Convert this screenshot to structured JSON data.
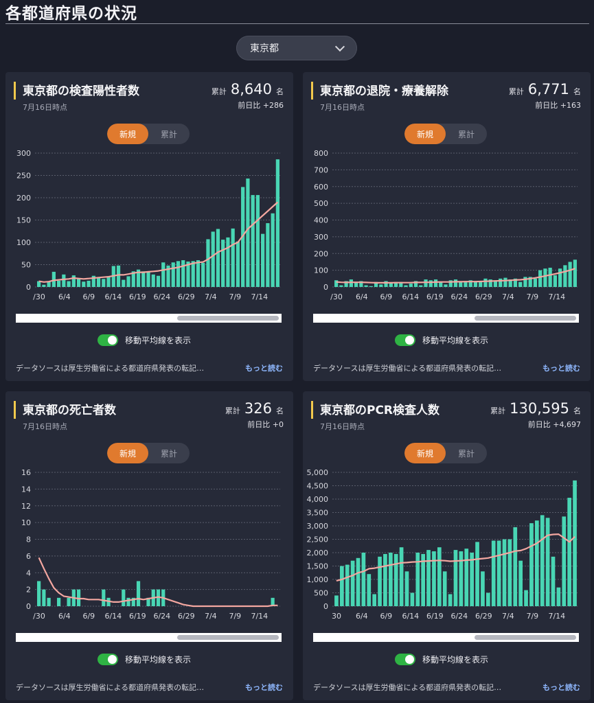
{
  "page_title": "各都道府県の状況",
  "region_select": {
    "value": "東京都"
  },
  "common": {
    "toggle_new": "新規",
    "toggle_cumulative": "累計",
    "ma_label": "移動平均線を表示",
    "source_text": "データソースは厚生労働省による都道府県発表の転記…",
    "more_label": "もっと読む",
    "total_label": "累計",
    "date_label": "7月16日時点"
  },
  "colors": {
    "bar": "#49d6b4",
    "ma_line": "#f4a7a0",
    "accent": "#f2c94c",
    "toggle_active": "#e07a2e",
    "switch_on": "#2fb344"
  },
  "cards": [
    {
      "title": "東京都の検査陽性者数",
      "total": "8,640",
      "unit": "名",
      "diff": "前日比 +286"
    },
    {
      "title": "東京都の退院・療養解除",
      "total": "6,771",
      "unit": "名",
      "diff": "前日比 +163"
    },
    {
      "title": "東京都の死亡者数",
      "total": "326",
      "unit": "名",
      "diff": "前日比 +0"
    },
    {
      "title": "東京都のPCR検査人数",
      "total": "130,595",
      "unit": "名",
      "diff": "前日比 +4,697"
    }
  ],
  "chart_data": [
    {
      "type": "bar",
      "title": "東京都の検査陽性者数",
      "x_tick_labels": [
        "/30",
        "6/4",
        "6/9",
        "6/14",
        "6/19",
        "6/24",
        "6/29",
        "7/4",
        "7/9",
        "7/14"
      ],
      "ylim": [
        0,
        300
      ],
      "y_ticks": [
        "0",
        "50",
        "100",
        "150",
        "200",
        "250",
        "300"
      ],
      "grid": true,
      "values": [
        13,
        5,
        12,
        34,
        14,
        28,
        13,
        26,
        20,
        12,
        14,
        25,
        22,
        18,
        24,
        47,
        48,
        16,
        24,
        35,
        39,
        35,
        33,
        28,
        25,
        55,
        48,
        55,
        58,
        60,
        57,
        58,
        60,
        54,
        107,
        124,
        130,
        106,
        111,
        131,
        102,
        224,
        243,
        206,
        206,
        119,
        143,
        165,
        286
      ],
      "moving_average": [
        13,
        11,
        12,
        15,
        16,
        17,
        18,
        20,
        19,
        18,
        19,
        20,
        21,
        22,
        23,
        25,
        27,
        27,
        29,
        31,
        33,
        33,
        34,
        35,
        36,
        38,
        40,
        42,
        44,
        47,
        50,
        53,
        55,
        56,
        62,
        70,
        78,
        83,
        88,
        95,
        100,
        115,
        130,
        140,
        150,
        160,
        170,
        180,
        190
      ]
    },
    {
      "type": "bar",
      "title": "東京都の退院・療養解除",
      "x_tick_labels": [
        "/30",
        "6/4",
        "6/9",
        "6/14",
        "6/19",
        "6/24",
        "6/29",
        "7/4",
        "7/9",
        "7/14"
      ],
      "ylim": [
        0,
        800
      ],
      "y_ticks": [
        "0",
        "100",
        "200",
        "300",
        "400",
        "500",
        "600",
        "700",
        "800"
      ],
      "grid": true,
      "values": [
        40,
        10,
        35,
        45,
        30,
        35,
        10,
        5,
        30,
        15,
        35,
        25,
        30,
        30,
        10,
        20,
        35,
        10,
        45,
        40,
        45,
        30,
        15,
        40,
        45,
        30,
        35,
        40,
        30,
        35,
        50,
        45,
        40,
        50,
        55,
        45,
        50,
        30,
        60,
        60,
        50,
        100,
        110,
        115,
        70,
        110,
        130,
        150,
        163
      ],
      "moving_average": [
        30,
        28,
        27,
        28,
        28,
        28,
        27,
        26,
        25,
        25,
        25,
        25,
        26,
        26,
        26,
        26,
        27,
        27,
        28,
        28,
        29,
        30,
        30,
        30,
        31,
        31,
        32,
        32,
        32,
        33,
        34,
        35,
        36,
        37,
        38,
        40,
        42,
        43,
        46,
        50,
        54,
        60,
        66,
        72,
        78,
        85,
        92,
        100,
        110
      ]
    },
    {
      "type": "bar",
      "title": "東京都の死亡者数",
      "x_tick_labels": [
        "/30",
        "6/4",
        "6/9",
        "6/14",
        "6/19",
        "6/24",
        "6/29",
        "7/4",
        "7/9",
        "7/14"
      ],
      "ylim": [
        0,
        16
      ],
      "y_ticks": [
        "0",
        "2",
        "4",
        "6",
        "8",
        "10",
        "12",
        "14",
        "16"
      ],
      "grid": true,
      "values": [
        3,
        2,
        1,
        0,
        1,
        0,
        1,
        2,
        2,
        0,
        0,
        0,
        0,
        2,
        1,
        0,
        0,
        2,
        1,
        1,
        3,
        0,
        1,
        2,
        2,
        2,
        0,
        0,
        0,
        0,
        0,
        0,
        0,
        0,
        0,
        0,
        0,
        0,
        0,
        0,
        0,
        0,
        0,
        0,
        0,
        0,
        0,
        1,
        0
      ],
      "moving_average": [
        5.8,
        4.5,
        3.3,
        2.2,
        1.6,
        1.2,
        1.1,
        1.0,
        0.9,
        0.9,
        0.8,
        0.8,
        0.8,
        0.7,
        0.6,
        0.5,
        0.5,
        0.6,
        0.7,
        0.8,
        0.9,
        0.8,
        0.9,
        1.0,
        1.1,
        1.0,
        0.8,
        0.6,
        0.4,
        0.2,
        0.1,
        0.0,
        0.0,
        0.0,
        0.0,
        0.0,
        0.0,
        0.0,
        0.0,
        0.0,
        0.0,
        0.0,
        0.0,
        0.0,
        0.0,
        0.0,
        0.0,
        0.1,
        0.1
      ]
    },
    {
      "type": "bar",
      "title": "東京都のPCR検査人数",
      "x_tick_labels": [
        "30",
        "6/4",
        "6/9",
        "6/14",
        "6/19",
        "6/24",
        "6/29",
        "7/4",
        "7/9",
        "7/14"
      ],
      "ylim": [
        0,
        5000
      ],
      "y_ticks": [
        "0",
        "500",
        "1,000",
        "1,500",
        "2,000",
        "2,500",
        "3,000",
        "3,500",
        "4,000",
        "4,500",
        "5,000"
      ],
      "grid": true,
      "values": [
        400,
        1500,
        1550,
        1700,
        1800,
        2000,
        1200,
        450,
        1850,
        1950,
        2000,
        1950,
        2200,
        1300,
        500,
        2000,
        1950,
        2100,
        2050,
        2200,
        1300,
        450,
        2100,
        2050,
        2150,
        2000,
        2400,
        1300,
        500,
        2450,
        2450,
        2500,
        2500,
        2950,
        1700,
        600,
        3100,
        3200,
        3400,
        3300,
        1850,
        700,
        3350,
        4050,
        4697
      ],
      "moving_average": [
        950,
        1000,
        1080,
        1150,
        1250,
        1300,
        1400,
        1420,
        1460,
        1500,
        1540,
        1580,
        1620,
        1630,
        1650,
        1660,
        1680,
        1690,
        1700,
        1710,
        1700,
        1680,
        1690,
        1700,
        1720,
        1730,
        1760,
        1780,
        1800,
        1850,
        1900,
        1950,
        2000,
        2060,
        2080,
        2150,
        2250,
        2350,
        2500,
        2650,
        2680,
        2690,
        2550,
        2400,
        2600
      ]
    }
  ]
}
